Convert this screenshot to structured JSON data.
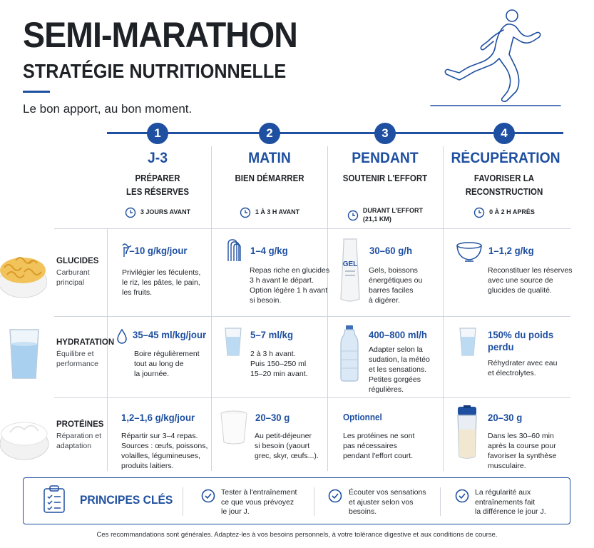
{
  "header": {
    "title": "SEMI-MARATHON",
    "subtitle": "STRATÉGIE NUTRITIONNELLE",
    "tagline": "Le bon apport, au bon moment."
  },
  "colors": {
    "accent": "#1e4fa0",
    "text": "#1e2227",
    "divider": "#cfd4db"
  },
  "phases": [
    {
      "step": "1",
      "name": "J-3",
      "sub1": "PRÉPARER",
      "sub2": "LES RÉSERVES",
      "time1": "3 JOURS AVANT",
      "time2": ""
    },
    {
      "step": "2",
      "name": "MATIN",
      "sub1": "BIEN DÉMARRER",
      "sub2": "",
      "time1": "1 À 3 H AVANT",
      "time2": ""
    },
    {
      "step": "3",
      "name": "PENDANT",
      "sub1": "SOUTENIR L'EFFORT",
      "sub2": "",
      "time1": "DURANT L'EFFORT",
      "time2": "(21,1 KM)"
    },
    {
      "step": "4",
      "name": "RÉCUPÉRATION",
      "sub1": "FAVORISER LA",
      "sub2": "RECONSTRUCTION",
      "time1": "0 À 2 H APRÈS",
      "time2": ""
    }
  ],
  "rows": {
    "glucides": {
      "name": "GLUCIDES",
      "desc1": "Carburant",
      "desc2": "principal",
      "image_icon": "pasta-bowl-icon",
      "cells": [
        {
          "value": "7–10 g/kg/jour",
          "icon": "pasta-icon",
          "lines": [
            "Privilégier les féculents,",
            "le riz, les pâtes, le pain,",
            "les fruits."
          ]
        },
        {
          "value": "1–4 g/kg",
          "icon": "bread-slices-icon",
          "lines": [
            "Repas riche en glucides",
            "3 h avant le départ.",
            "Option légère 1 h avant",
            "si besoin."
          ]
        },
        {
          "value": "30–60 g/h",
          "icon": "gel-pack-icon",
          "icon_label": "GEL",
          "lines": [
            "Gels, boissons",
            "énergétiques ou",
            "barres faciles",
            "à digérer."
          ]
        },
        {
          "value": "1–1,2 g/kg",
          "icon": "bowl-icon",
          "lines": [
            "Reconstituer les réserves",
            "avec une source de",
            "glucides de qualité."
          ]
        }
      ]
    },
    "hydratation": {
      "name": "HYDRATATION",
      "desc1": "Équilibre et",
      "desc2": "performance",
      "image_icon": "water-glass-icon",
      "cells": [
        {
          "value": "35–45 ml/kg/jour",
          "icon": "water-drop-icon",
          "lines": [
            "Boire régulièrement",
            "tout au long de",
            "la journée."
          ]
        },
        {
          "value": "5–7 ml/kg",
          "icon": "glass-icon",
          "lines": [
            "2 à 3 h avant.",
            "Puis 150–250 ml",
            "15–20 min avant."
          ]
        },
        {
          "value": "400–800 ml/h",
          "icon": "water-bottle-icon",
          "lines": [
            "Adapter selon la",
            "sudation, la météo",
            "et les sensations.",
            "Petites gorgées",
            "régulières."
          ]
        },
        {
          "value": "150% du poids",
          "value2": "perdu",
          "icon": "glass-icon",
          "lines": [
            "Réhydrater avec eau",
            "et électrolytes."
          ]
        }
      ]
    },
    "proteines": {
      "name": "PROTÉINES",
      "desc1": "Réparation et",
      "desc2": "adaptation",
      "image_icon": "yogurt-bowl-icon",
      "cells": [
        {
          "value": "1,2–1,6 g/kg/jour",
          "icon": "",
          "lines": [
            "Répartir sur 3–4 repas.",
            "Sources : œufs, poissons,",
            "volailles, légumineuses,",
            "produits laitiers."
          ]
        },
        {
          "value": "20–30 g",
          "icon": "yogurt-cup-icon",
          "lines": [
            "Au petit-déjeuner",
            "si besoin (yaourt",
            "grec, skyr, œufs...)."
          ]
        },
        {
          "value": "Optionnel",
          "icon": "",
          "lines": [
            "Les protéines ne sont",
            "pas nécessaires",
            "pendant l'effort court."
          ]
        },
        {
          "value": "20–30 g",
          "icon": "shaker-icon",
          "lines": [
            "Dans les 30–60 min",
            "après la course pour",
            "favoriser la synthèse",
            "musculaire."
          ]
        }
      ]
    }
  },
  "principles": {
    "title": "PRINCIPES CLÉS",
    "icon": "clipboard-checklist-icon",
    "items": [
      {
        "icon": "check-circle-icon",
        "lines": [
          "Tester à l'entraînement",
          "ce que vous prévoyez",
          "le jour J."
        ]
      },
      {
        "icon": "check-circle-icon",
        "lines": [
          "Écouter vos sensations",
          "et ajuster selon vos",
          "besoins."
        ]
      },
      {
        "icon": "check-circle-icon",
        "lines": [
          "La régularité aux",
          "entraînements fait",
          "la différence le jour J."
        ]
      }
    ]
  },
  "footnote": "Ces recommandations sont générales. Adaptez-les à vos besoins personnels, à votre tolérance digestive et aux conditions de course."
}
